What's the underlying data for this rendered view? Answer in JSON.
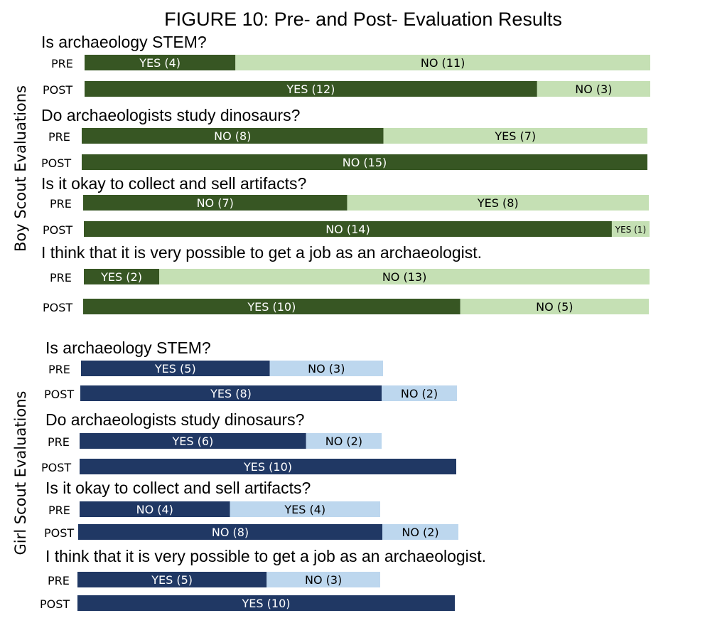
{
  "chart_data": {
    "type": "bar",
    "title": "FIGURE 10: Pre- and Post- Evaluation Results",
    "colors": {
      "boy_dark": "#375623",
      "boy_light": "#c5e0b4",
      "girl_dark": "#203864",
      "girl_light": "#bdd7ee"
    },
    "groups": [
      {
        "label": "Boy Scout Evaluations",
        "palette": "boy",
        "questions": [
          {
            "question": "Is archaeology STEM?",
            "rows": [
              {
                "label": "PRE",
                "segments": [
                  {
                    "label": "YES (4)",
                    "value": 4
                  },
                  {
                    "label": "NO (11)",
                    "value": 11
                  }
                ]
              },
              {
                "label": "POST",
                "segments": [
                  {
                    "label": "YES (12)",
                    "value": 12
                  },
                  {
                    "label": "NO (3)",
                    "value": 3
                  }
                ]
              }
            ]
          },
          {
            "question": "Do archaeologists study dinosaurs?",
            "rows": [
              {
                "label": "PRE",
                "segments": [
                  {
                    "label": "NO (8)",
                    "value": 8
                  },
                  {
                    "label": "YES (7)",
                    "value": 7
                  }
                ]
              },
              {
                "label": "POST",
                "segments": [
                  {
                    "label": "NO (15)",
                    "value": 15
                  }
                ]
              }
            ]
          },
          {
            "question": "Is it okay to collect and sell artifacts?",
            "rows": [
              {
                "label": "PRE",
                "segments": [
                  {
                    "label": "NO (7)",
                    "value": 7
                  },
                  {
                    "label": "YES (8)",
                    "value": 8
                  }
                ]
              },
              {
                "label": "POST",
                "segments": [
                  {
                    "label": "NO (14)",
                    "value": 14
                  },
                  {
                    "label": "YES (1)",
                    "value": 1
                  }
                ]
              }
            ]
          },
          {
            "question": "I think that it is very possible to get a job as an archaeologist.",
            "rows": [
              {
                "label": "PRE",
                "segments": [
                  {
                    "label": "YES (2)",
                    "value": 2
                  },
                  {
                    "label": "NO (13)",
                    "value": 13
                  }
                ]
              },
              {
                "label": "POST",
                "segments": [
                  {
                    "label": "YES (10)",
                    "value": 10
                  },
                  {
                    "label": "NO (5)",
                    "value": 5
                  }
                ]
              }
            ]
          }
        ]
      },
      {
        "label": "Girl Scout Evaluations",
        "palette": "girl",
        "questions": [
          {
            "question": "Is archaeology STEM?",
            "rows": [
              {
                "label": "PRE",
                "segments": [
                  {
                    "label": "YES (5)",
                    "value": 5
                  },
                  {
                    "label": "NO (3)",
                    "value": 3
                  }
                ]
              },
              {
                "label": "POST",
                "segments": [
                  {
                    "label": "YES (8)",
                    "value": 8
                  },
                  {
                    "label": "NO (2)",
                    "value": 2
                  }
                ]
              }
            ]
          },
          {
            "question": "Do archaeologists study dinosaurs?",
            "rows": [
              {
                "label": "PRE",
                "segments": [
                  {
                    "label": "YES (6)",
                    "value": 6
                  },
                  {
                    "label": "NO (2)",
                    "value": 2
                  }
                ]
              },
              {
                "label": "POST",
                "segments": [
                  {
                    "label": "YES (10)",
                    "value": 10
                  }
                ]
              }
            ]
          },
          {
            "question": "Is it okay to collect and sell artifacts?",
            "rows": [
              {
                "label": "PRE",
                "segments": [
                  {
                    "label": "NO (4)",
                    "value": 4
                  },
                  {
                    "label": "YES (4)",
                    "value": 4
                  }
                ]
              },
              {
                "label": "POST",
                "segments": [
                  {
                    "label": "NO (8)",
                    "value": 8
                  },
                  {
                    "label": "NO (2)",
                    "value": 2
                  }
                ]
              }
            ]
          },
          {
            "question": "I think that it is very possible to get a job as an archaeologist.",
            "rows": [
              {
                "label": "PRE",
                "segments": [
                  {
                    "label": "YES (5)",
                    "value": 5
                  },
                  {
                    "label": "NO (3)",
                    "value": 3
                  }
                ]
              },
              {
                "label": "POST",
                "segments": [
                  {
                    "label": "YES (10)",
                    "value": 10
                  }
                ]
              }
            ]
          }
        ]
      }
    ]
  }
}
